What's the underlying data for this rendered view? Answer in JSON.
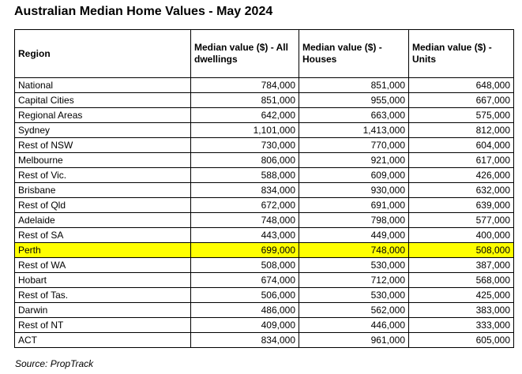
{
  "page": {
    "title": "Australian Median Home Values - May 2024",
    "source_note": "Source: PropTrack"
  },
  "colors": {
    "highlight_row": "#FFFF00",
    "border": "#000000",
    "text": "#000000",
    "background": "#FFFFFF"
  },
  "table": {
    "columns": [
      {
        "key": "region",
        "label": "Region"
      },
      {
        "key": "all_dwellings",
        "label": "Median value ($) - All dwellings"
      },
      {
        "key": "houses",
        "label": "Median value ($) - Houses"
      },
      {
        "key": "units",
        "label": "Median value ($) - Units"
      }
    ],
    "rows": [
      {
        "region": "National",
        "all_dwellings": "784,000",
        "houses": "851,000",
        "units": "648,000",
        "highlighted": false
      },
      {
        "region": "Capital Cities",
        "all_dwellings": "851,000",
        "houses": "955,000",
        "units": "667,000",
        "highlighted": false
      },
      {
        "region": "Regional Areas",
        "all_dwellings": "642,000",
        "houses": "663,000",
        "units": "575,000",
        "highlighted": false
      },
      {
        "region": "Sydney",
        "all_dwellings": "1,101,000",
        "houses": "1,413,000",
        "units": "812,000",
        "highlighted": false
      },
      {
        "region": "Rest of NSW",
        "all_dwellings": "730,000",
        "houses": "770,000",
        "units": "604,000",
        "highlighted": false
      },
      {
        "region": "Melbourne",
        "all_dwellings": "806,000",
        "houses": "921,000",
        "units": "617,000",
        "highlighted": false
      },
      {
        "region": "Rest of Vic.",
        "all_dwellings": "588,000",
        "houses": "609,000",
        "units": "426,000",
        "highlighted": false
      },
      {
        "region": "Brisbane",
        "all_dwellings": "834,000",
        "houses": "930,000",
        "units": "632,000",
        "highlighted": false
      },
      {
        "region": "Rest of Qld",
        "all_dwellings": "672,000",
        "houses": "691,000",
        "units": "639,000",
        "highlighted": false
      },
      {
        "region": "Adelaide",
        "all_dwellings": "748,000",
        "houses": "798,000",
        "units": "577,000",
        "highlighted": false
      },
      {
        "region": "Rest of SA",
        "all_dwellings": "443,000",
        "houses": "449,000",
        "units": "400,000",
        "highlighted": false
      },
      {
        "region": "Perth",
        "all_dwellings": "699,000",
        "houses": "748,000",
        "units": "508,000",
        "highlighted": true
      },
      {
        "region": "Rest of WA",
        "all_dwellings": "508,000",
        "houses": "530,000",
        "units": "387,000",
        "highlighted": false
      },
      {
        "region": "Hobart",
        "all_dwellings": "674,000",
        "houses": "712,000",
        "units": "568,000",
        "highlighted": false
      },
      {
        "region": "Rest of Tas.",
        "all_dwellings": "506,000",
        "houses": "530,000",
        "units": "425,000",
        "highlighted": false
      },
      {
        "region": "Darwin",
        "all_dwellings": "486,000",
        "houses": "562,000",
        "units": "383,000",
        "highlighted": false
      },
      {
        "region": "Rest of NT",
        "all_dwellings": "409,000",
        "houses": "446,000",
        "units": "333,000",
        "highlighted": false
      },
      {
        "region": "ACT",
        "all_dwellings": "834,000",
        "houses": "961,000",
        "units": "605,000",
        "highlighted": false
      }
    ]
  },
  "chart_data": {
    "type": "table",
    "title": "Australian Median Home Values - May 2024",
    "columns": [
      "Region",
      "Median value ($) - All dwellings",
      "Median value ($) - Houses",
      "Median value ($) - Units"
    ],
    "rows": [
      [
        "National",
        784000,
        851000,
        648000
      ],
      [
        "Capital Cities",
        851000,
        955000,
        667000
      ],
      [
        "Regional Areas",
        642000,
        663000,
        575000
      ],
      [
        "Sydney",
        1101000,
        1413000,
        812000
      ],
      [
        "Rest of NSW",
        730000,
        770000,
        604000
      ],
      [
        "Melbourne",
        806000,
        921000,
        617000
      ],
      [
        "Rest of Vic.",
        588000,
        609000,
        426000
      ],
      [
        "Brisbane",
        834000,
        930000,
        632000
      ],
      [
        "Rest of Qld",
        672000,
        691000,
        639000
      ],
      [
        "Adelaide",
        748000,
        798000,
        577000
      ],
      [
        "Rest of SA",
        443000,
        449000,
        400000
      ],
      [
        "Perth",
        699000,
        748000,
        508000
      ],
      [
        "Rest of WA",
        508000,
        530000,
        387000
      ],
      [
        "Hobart",
        674000,
        712000,
        568000
      ],
      [
        "Rest of Tas.",
        506000,
        530000,
        425000
      ],
      [
        "Darwin",
        486000,
        562000,
        383000
      ],
      [
        "Rest of NT",
        409000,
        446000,
        333000
      ],
      [
        "ACT",
        834000,
        961000,
        605000
      ]
    ],
    "highlighted_row": "Perth",
    "source": "PropTrack"
  }
}
